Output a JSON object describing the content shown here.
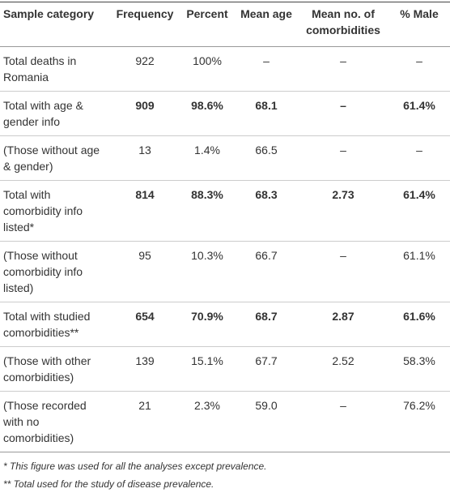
{
  "table": {
    "header": [
      "Sample category",
      "Frequency",
      "Percent",
      "Mean age",
      "Mean no. of comorbidities",
      "% Male"
    ],
    "rows": [
      [
        "Total deaths in Romania",
        "922",
        "100%",
        "–",
        "–",
        "–"
      ],
      [
        "Total with age & gender info",
        "909",
        "98.6%",
        "68.1",
        "–",
        "61.4%"
      ],
      [
        "(Those without age & gender)",
        "13",
        "1.4%",
        "66.5",
        "–",
        "–"
      ],
      [
        "Total with comorbidity info listed*",
        "814",
        "88.3%",
        "68.3",
        "2.73",
        "61.4%"
      ],
      [
        "(Those without comorbidity info listed)",
        "95",
        "10.3%",
        "66.7",
        "–",
        "61.1%"
      ],
      [
        "Total with studied comorbidities**",
        "654",
        "70.9%",
        "68.7",
        "2.87",
        "61.6%"
      ],
      [
        "(Those with other comorbidities)",
        "139",
        "15.1%",
        "67.7",
        "2.52",
        "58.3%"
      ],
      [
        "(Those recorded with no comorbidities)",
        "21",
        "2.3%",
        "59.0",
        "–",
        "76.2%"
      ]
    ]
  },
  "footnotes": [
    "* This figure was used for all the analyses except prevalence.",
    "** Total used for the study of disease prevalence."
  ]
}
